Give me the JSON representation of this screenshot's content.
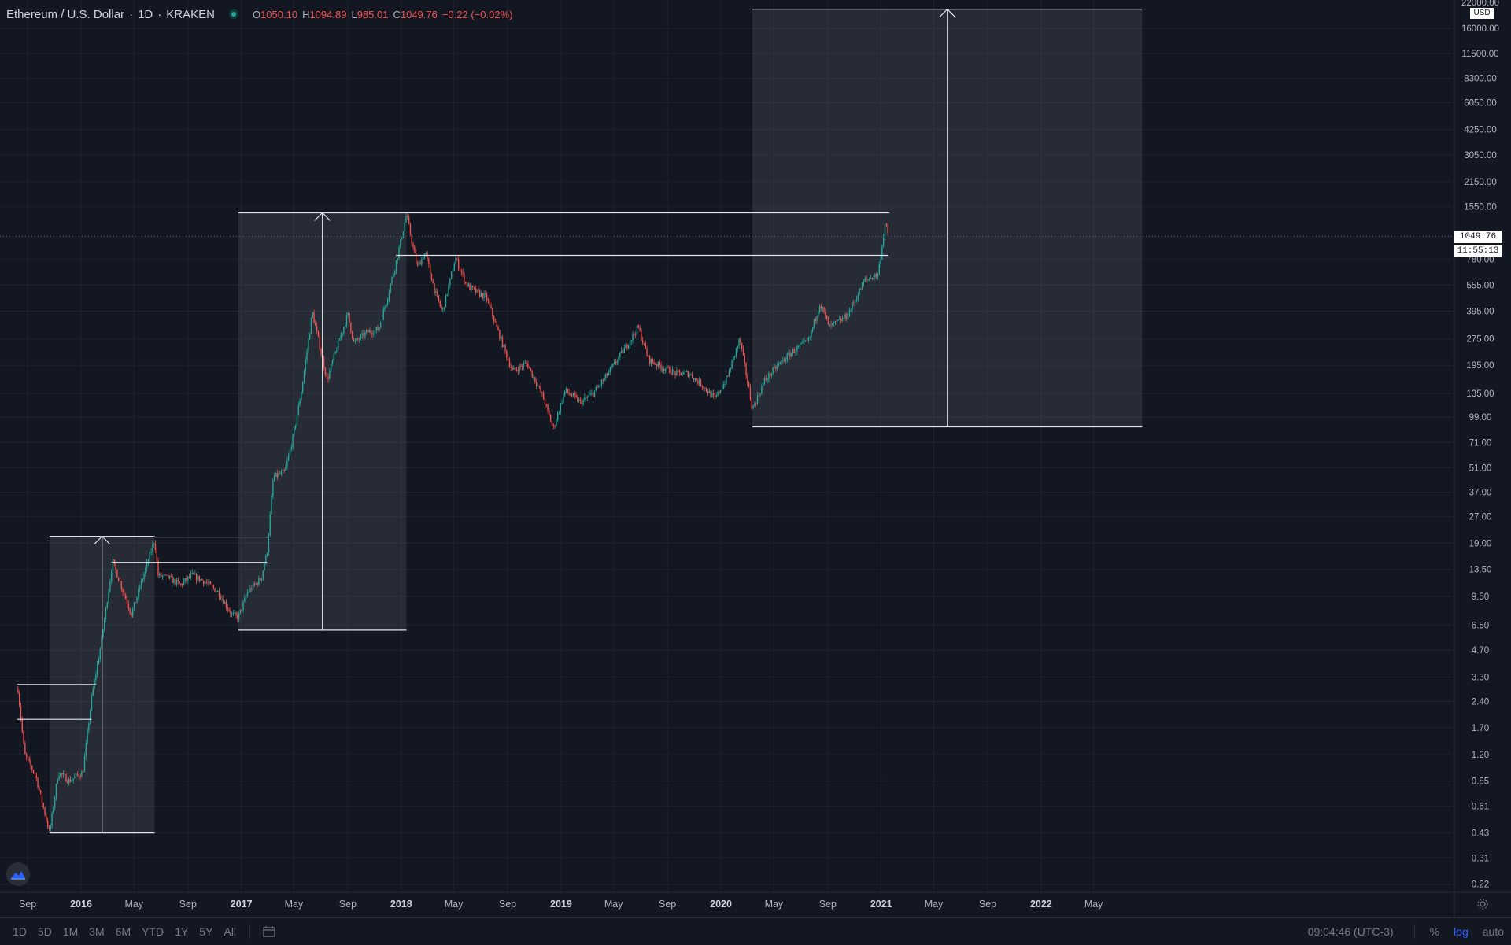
{
  "legend": {
    "symbol": "Ethereum / U.S. Dollar",
    "interval": "1D",
    "exchange": "KRAKEN",
    "open_label": "O",
    "open": "1050.10",
    "high_label": "H",
    "high": "1094.89",
    "low_label": "L",
    "low": "985.01",
    "close_label": "C",
    "close": "1049.76",
    "change": "−0.22 (−0.02%)"
  },
  "price_axis": {
    "currency_badge": "USD",
    "top_label": "22000.00",
    "last_price": "1049.76",
    "countdown": "11:55:13"
  },
  "bottom_bar": {
    "ranges": [
      "1D",
      "5D",
      "1M",
      "3M",
      "6M",
      "YTD",
      "1Y",
      "5Y",
      "All"
    ],
    "clock": "09:04:46 (UTC-3)",
    "percent_label": "%",
    "log_label": "log",
    "auto_label": "auto"
  },
  "icons": [
    "calendar-icon",
    "settings-gear-icon",
    "tradingview-logo-icon"
  ],
  "colors": {
    "background": "#131722",
    "grid": "#1e222d",
    "up": "#26a69a",
    "down": "#ef5350",
    "drawing": "#e0e3eb",
    "text": "#b2b5be",
    "log_active": "#2962ff"
  },
  "chart_data": {
    "type": "candlestick",
    "title": "Ethereum / U.S. Dollar · 1D · KRAKEN",
    "y_scale": "log",
    "ylim": [
      0.2,
      22000
    ],
    "y_ticks": [
      0.22,
      0.31,
      0.43,
      0.61,
      0.85,
      1.2,
      1.7,
      2.4,
      3.3,
      4.7,
      6.5,
      9.5,
      13.5,
      19.0,
      27.0,
      37.0,
      51.0,
      71.0,
      99.0,
      135.0,
      195.0,
      275.0,
      395.0,
      555.0,
      780.0,
      1550.0,
      2150.0,
      3050.0,
      4250.0,
      6050.0,
      8300.0,
      11500.0,
      16000.0
    ],
    "x_ticks": [
      {
        "date": "2015-09",
        "label": "Sep",
        "bold": false
      },
      {
        "date": "2016-01",
        "label": "2016",
        "bold": true
      },
      {
        "date": "2016-05",
        "label": "May",
        "bold": false
      },
      {
        "date": "2016-09",
        "label": "Sep",
        "bold": false
      },
      {
        "date": "2017-01",
        "label": "2017",
        "bold": true
      },
      {
        "date": "2017-05",
        "label": "May",
        "bold": false
      },
      {
        "date": "2017-09",
        "label": "Sep",
        "bold": false
      },
      {
        "date": "2018-01",
        "label": "2018",
        "bold": true
      },
      {
        "date": "2018-05",
        "label": "May",
        "bold": false
      },
      {
        "date": "2018-09",
        "label": "Sep",
        "bold": false
      },
      {
        "date": "2019-01",
        "label": "2019",
        "bold": true
      },
      {
        "date": "2019-05",
        "label": "May",
        "bold": false
      },
      {
        "date": "2019-09",
        "label": "Sep",
        "bold": false
      },
      {
        "date": "2020-01",
        "label": "2020",
        "bold": true
      },
      {
        "date": "2020-05",
        "label": "May",
        "bold": false
      },
      {
        "date": "2020-09",
        "label": "Sep",
        "bold": false
      },
      {
        "date": "2021-01",
        "label": "2021",
        "bold": true
      },
      {
        "date": "2021-05",
        "label": "May",
        "bold": false
      },
      {
        "date": "2021-09",
        "label": "Sep",
        "bold": false
      },
      {
        "date": "2022-01",
        "label": "2022",
        "bold": true
      },
      {
        "date": "2022-05",
        "label": "May",
        "bold": false
      }
    ],
    "price_path": [
      [
        "2015-08-10",
        2.8
      ],
      [
        "2015-08-25",
        1.2
      ],
      [
        "2015-09-20",
        0.9
      ],
      [
        "2015-10-21",
        0.43
      ],
      [
        "2015-11-10",
        0.95
      ],
      [
        "2015-12-05",
        0.85
      ],
      [
        "2016-01-05",
        0.95
      ],
      [
        "2016-01-25",
        2.5
      ],
      [
        "2016-02-15",
        5.0
      ],
      [
        "2016-03-13",
        15.0
      ],
      [
        "2016-04-01",
        11.0
      ],
      [
        "2016-04-25",
        7.5
      ],
      [
        "2016-05-25",
        13.0
      ],
      [
        "2016-06-17",
        20.0
      ],
      [
        "2016-06-25",
        12.5
      ],
      [
        "2016-07-20",
        12.0
      ],
      [
        "2016-08-15",
        11.0
      ],
      [
        "2016-09-10",
        12.5
      ],
      [
        "2016-10-10",
        11.5
      ],
      [
        "2016-11-10",
        10.0
      ],
      [
        "2016-12-10",
        7.5
      ],
      [
        "2016-12-25",
        7.2
      ],
      [
        "2017-01-15",
        10.0
      ],
      [
        "2017-02-15",
        12.0
      ],
      [
        "2017-03-01",
        17.0
      ],
      [
        "2017-03-15",
        45.0
      ],
      [
        "2017-04-10",
        48.0
      ],
      [
        "2017-05-01",
        80.0
      ],
      [
        "2017-05-20",
        150.0
      ],
      [
        "2017-06-12",
        390.0
      ],
      [
        "2017-07-16",
        160.0
      ],
      [
        "2017-08-01",
        220.0
      ],
      [
        "2017-09-01",
        380.0
      ],
      [
        "2017-09-15",
        260.0
      ],
      [
        "2017-10-15",
        300.0
      ],
      [
        "2017-11-10",
        310.0
      ],
      [
        "2017-11-28",
        450.0
      ],
      [
        "2017-12-22",
        780.0
      ],
      [
        "2018-01-13",
        1400.0
      ],
      [
        "2018-02-06",
        700.0
      ],
      [
        "2018-02-25",
        850.0
      ],
      [
        "2018-03-20",
        500.0
      ],
      [
        "2018-04-05",
        390.0
      ],
      [
        "2018-05-05",
        790.0
      ],
      [
        "2018-05-30",
        560.0
      ],
      [
        "2018-06-15",
        520.0
      ],
      [
        "2018-07-15",
        470.0
      ],
      [
        "2018-08-15",
        280.0
      ],
      [
        "2018-09-12",
        180.0
      ],
      [
        "2018-10-15",
        200.0
      ],
      [
        "2018-11-20",
        130.0
      ],
      [
        "2018-12-14",
        85.0
      ],
      [
        "2019-01-10",
        140.0
      ],
      [
        "2019-02-15",
        120.0
      ],
      [
        "2019-03-15",
        135.0
      ],
      [
        "2019-04-15",
        170.0
      ],
      [
        "2019-05-30",
        250.0
      ],
      [
        "2019-06-26",
        320.0
      ],
      [
        "2019-07-20",
        210.0
      ],
      [
        "2019-08-20",
        190.0
      ],
      [
        "2019-09-20",
        175.0
      ],
      [
        "2019-10-20",
        175.0
      ],
      [
        "2019-11-20",
        150.0
      ],
      [
        "2019-12-18",
        125.0
      ],
      [
        "2020-01-15",
        165.0
      ],
      [
        "2020-02-13",
        275.0
      ],
      [
        "2020-03-13",
        110.0
      ],
      [
        "2020-04-10",
        160.0
      ],
      [
        "2020-05-15",
        200.0
      ],
      [
        "2020-06-15",
        235.0
      ],
      [
        "2020-07-20",
        270.0
      ],
      [
        "2020-08-14",
        440.0
      ],
      [
        "2020-09-05",
        320.0
      ],
      [
        "2020-10-15",
        370.0
      ],
      [
        "2020-11-24",
        590.0
      ],
      [
        "2020-12-25",
        640.0
      ],
      [
        "2021-01-10",
        1250.0
      ],
      [
        "2021-01-17",
        1049.76
      ]
    ],
    "drawings": [
      {
        "type": "price-range",
        "from_date": "2015-10-21",
        "to_date": "2016-06-17",
        "low": 0.43,
        "high": 20.8
      },
      {
        "type": "price-range",
        "from_date": "2016-12-25",
        "to_date": "2018-01-13",
        "low": 6.1,
        "high": 1430
      },
      {
        "type": "price-range",
        "from_date": "2020-03-13",
        "to_date": "2022-08-20",
        "low": 87,
        "high": 20500
      },
      {
        "type": "horizontal-segment",
        "from_date": "2015-08-08",
        "to_date": "2016-02-05",
        "price": 3.0
      },
      {
        "type": "horizontal-segment",
        "from_date": "2015-08-08",
        "to_date": "2016-01-25",
        "price": 1.9
      },
      {
        "type": "horizontal-segment",
        "from_date": "2016-06-17",
        "to_date": "2017-03-03",
        "price": 20.6
      },
      {
        "type": "horizontal-segment",
        "from_date": "2016-03-10",
        "to_date": "2017-03-01",
        "price": 14.8
      },
      {
        "type": "horizontal-segment",
        "from_date": "2018-01-13",
        "to_date": "2021-01-20",
        "price": 1430
      },
      {
        "type": "horizontal-segment",
        "from_date": "2017-12-20",
        "to_date": "2021-01-17",
        "price": 820
      }
    ]
  }
}
